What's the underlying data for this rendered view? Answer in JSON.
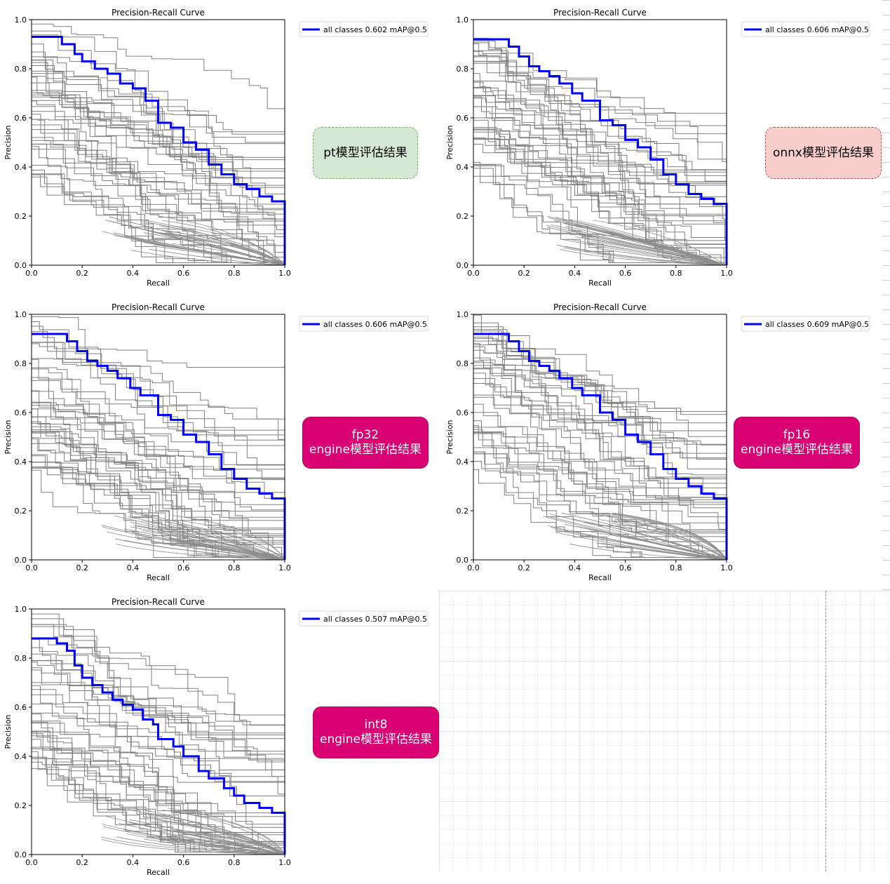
{
  "chart_data": [
    {
      "type": "line",
      "title": "Precision-Recall Curve",
      "xlabel": "Recall",
      "ylabel": "Precision",
      "xlim": [
        0,
        1
      ],
      "ylim": [
        0,
        1
      ],
      "xticks": [
        "0.0",
        "0.2",
        "0.4",
        "0.6",
        "0.8",
        "1.0"
      ],
      "yticks": [
        "0.0",
        "0.2",
        "0.4",
        "0.6",
        "0.8",
        "1.0"
      ],
      "legend_position": "top-right",
      "series": [
        {
          "name": "all classes 0.602 mAP@0.5",
          "color": "#0000ff",
          "x": [
            0,
            0.09,
            0.12,
            0.17,
            0.2,
            0.25,
            0.3,
            0.35,
            0.4,
            0.45,
            0.5,
            0.55,
            0.6,
            0.65,
            0.7,
            0.75,
            0.8,
            0.85,
            0.9,
            0.95,
            1.0
          ],
          "y": [
            0.93,
            0.93,
            0.9,
            0.86,
            0.83,
            0.8,
            0.78,
            0.74,
            0.72,
            0.67,
            0.58,
            0.56,
            0.5,
            0.47,
            0.41,
            0.37,
            0.33,
            0.31,
            0.28,
            0.26,
            0.26
          ]
        }
      ],
      "badge": {
        "lines": [
          "pt模型评估结果"
        ],
        "bg": "#d5e8d4",
        "border": "#82b366",
        "text_color": "#000000"
      }
    },
    {
      "type": "line",
      "title": "Precision-Recall Curve",
      "xlabel": "Recall",
      "ylabel": "Precision",
      "xlim": [
        0,
        1
      ],
      "ylim": [
        0,
        1
      ],
      "xticks": [
        "0.0",
        "0.2",
        "0.4",
        "0.6",
        "0.8",
        "1.0"
      ],
      "yticks": [
        "0.0",
        "0.2",
        "0.4",
        "0.6",
        "0.8",
        "1.0"
      ],
      "legend_position": "top-right",
      "series": [
        {
          "name": "all classes 0.606 mAP@0.5",
          "color": "#0000ff",
          "x": [
            0,
            0.1,
            0.14,
            0.18,
            0.22,
            0.26,
            0.3,
            0.34,
            0.39,
            0.43,
            0.48,
            0.5,
            0.55,
            0.6,
            0.65,
            0.7,
            0.75,
            0.8,
            0.85,
            0.9,
            0.95,
            1.0
          ],
          "y": [
            0.92,
            0.92,
            0.89,
            0.85,
            0.81,
            0.79,
            0.77,
            0.74,
            0.7,
            0.67,
            0.67,
            0.59,
            0.57,
            0.51,
            0.48,
            0.43,
            0.37,
            0.33,
            0.29,
            0.27,
            0.25,
            0.25
          ]
        }
      ],
      "badge": {
        "lines": [
          "onnx模型评估结果"
        ],
        "bg": "#f8cecc",
        "border": "#b85450",
        "text_color": "#000000"
      }
    },
    {
      "type": "line",
      "title": "Precision-Recall Curve",
      "xlabel": "Recall",
      "ylabel": "Precision",
      "xlim": [
        0,
        1
      ],
      "ylim": [
        0,
        1
      ],
      "xticks": [
        "0.0",
        "0.2",
        "0.4",
        "0.6",
        "0.8",
        "1.0"
      ],
      "yticks": [
        "0.0",
        "0.2",
        "0.4",
        "0.6",
        "0.8",
        "1.0"
      ],
      "legend_position": "top-right",
      "series": [
        {
          "name": "all classes 0.606 mAP@0.5",
          "color": "#0000ff",
          "x": [
            0,
            0.1,
            0.14,
            0.18,
            0.22,
            0.26,
            0.3,
            0.34,
            0.39,
            0.43,
            0.48,
            0.5,
            0.55,
            0.6,
            0.65,
            0.7,
            0.75,
            0.8,
            0.85,
            0.9,
            0.95,
            1.0
          ],
          "y": [
            0.92,
            0.92,
            0.89,
            0.85,
            0.81,
            0.79,
            0.77,
            0.74,
            0.7,
            0.67,
            0.67,
            0.59,
            0.57,
            0.51,
            0.48,
            0.43,
            0.37,
            0.33,
            0.29,
            0.27,
            0.25,
            0.25
          ]
        }
      ],
      "badge": {
        "lines": [
          "fp32",
          "engine模型评估结果"
        ],
        "bg": "#d80073",
        "border": "#a50040",
        "text_color": "#ffffff"
      }
    },
    {
      "type": "line",
      "title": "Precision-Recall Curve",
      "xlabel": "Recall",
      "ylabel": "Precision",
      "xlim": [
        0,
        1
      ],
      "ylim": [
        0,
        1
      ],
      "xticks": [
        "0.0",
        "0.2",
        "0.4",
        "0.6",
        "0.8",
        "1.0"
      ],
      "yticks": [
        "0.0",
        "0.2",
        "0.4",
        "0.6",
        "0.8",
        "1.0"
      ],
      "legend_position": "top-right",
      "series": [
        {
          "name": "all classes 0.609 mAP@0.5",
          "color": "#0000ff",
          "x": [
            0,
            0.1,
            0.14,
            0.18,
            0.22,
            0.26,
            0.3,
            0.34,
            0.39,
            0.43,
            0.48,
            0.5,
            0.55,
            0.6,
            0.65,
            0.7,
            0.75,
            0.8,
            0.85,
            0.9,
            0.95,
            1.0
          ],
          "y": [
            0.92,
            0.92,
            0.89,
            0.85,
            0.81,
            0.79,
            0.77,
            0.74,
            0.7,
            0.67,
            0.67,
            0.6,
            0.57,
            0.51,
            0.48,
            0.43,
            0.37,
            0.33,
            0.3,
            0.27,
            0.25,
            0.25
          ]
        }
      ],
      "badge": {
        "lines": [
          "fp16",
          "engine模型评估结果"
        ],
        "bg": "#d80073",
        "border": "#a50040",
        "text_color": "#ffffff"
      }
    },
    {
      "type": "line",
      "title": "Precision-Recall Curve",
      "xlabel": "Recall",
      "ylabel": "Precision",
      "xlim": [
        0,
        1
      ],
      "ylim": [
        0,
        1
      ],
      "xticks": [
        "0.0",
        "0.2",
        "0.4",
        "0.6",
        "0.8",
        "1.0"
      ],
      "yticks": [
        "0.0",
        "0.2",
        "0.4",
        "0.6",
        "0.8",
        "1.0"
      ],
      "legend_position": "top-right",
      "series": [
        {
          "name": "all classes 0.507 mAP@0.5",
          "color": "#0000ff",
          "x": [
            0,
            0.07,
            0.1,
            0.14,
            0.17,
            0.2,
            0.24,
            0.28,
            0.32,
            0.36,
            0.4,
            0.44,
            0.48,
            0.5,
            0.56,
            0.6,
            0.66,
            0.7,
            0.76,
            0.8,
            0.84,
            0.9,
            0.95,
            1.0
          ],
          "y": [
            0.88,
            0.88,
            0.86,
            0.83,
            0.77,
            0.72,
            0.69,
            0.66,
            0.63,
            0.61,
            0.59,
            0.55,
            0.53,
            0.47,
            0.44,
            0.4,
            0.34,
            0.31,
            0.27,
            0.24,
            0.21,
            0.19,
            0.17,
            0.17
          ]
        }
      ],
      "badge": {
        "lines": [
          "int8",
          "engine模型评估结果"
        ],
        "bg": "#d80073",
        "border": "#a50040",
        "text_color": "#ffffff"
      }
    }
  ]
}
